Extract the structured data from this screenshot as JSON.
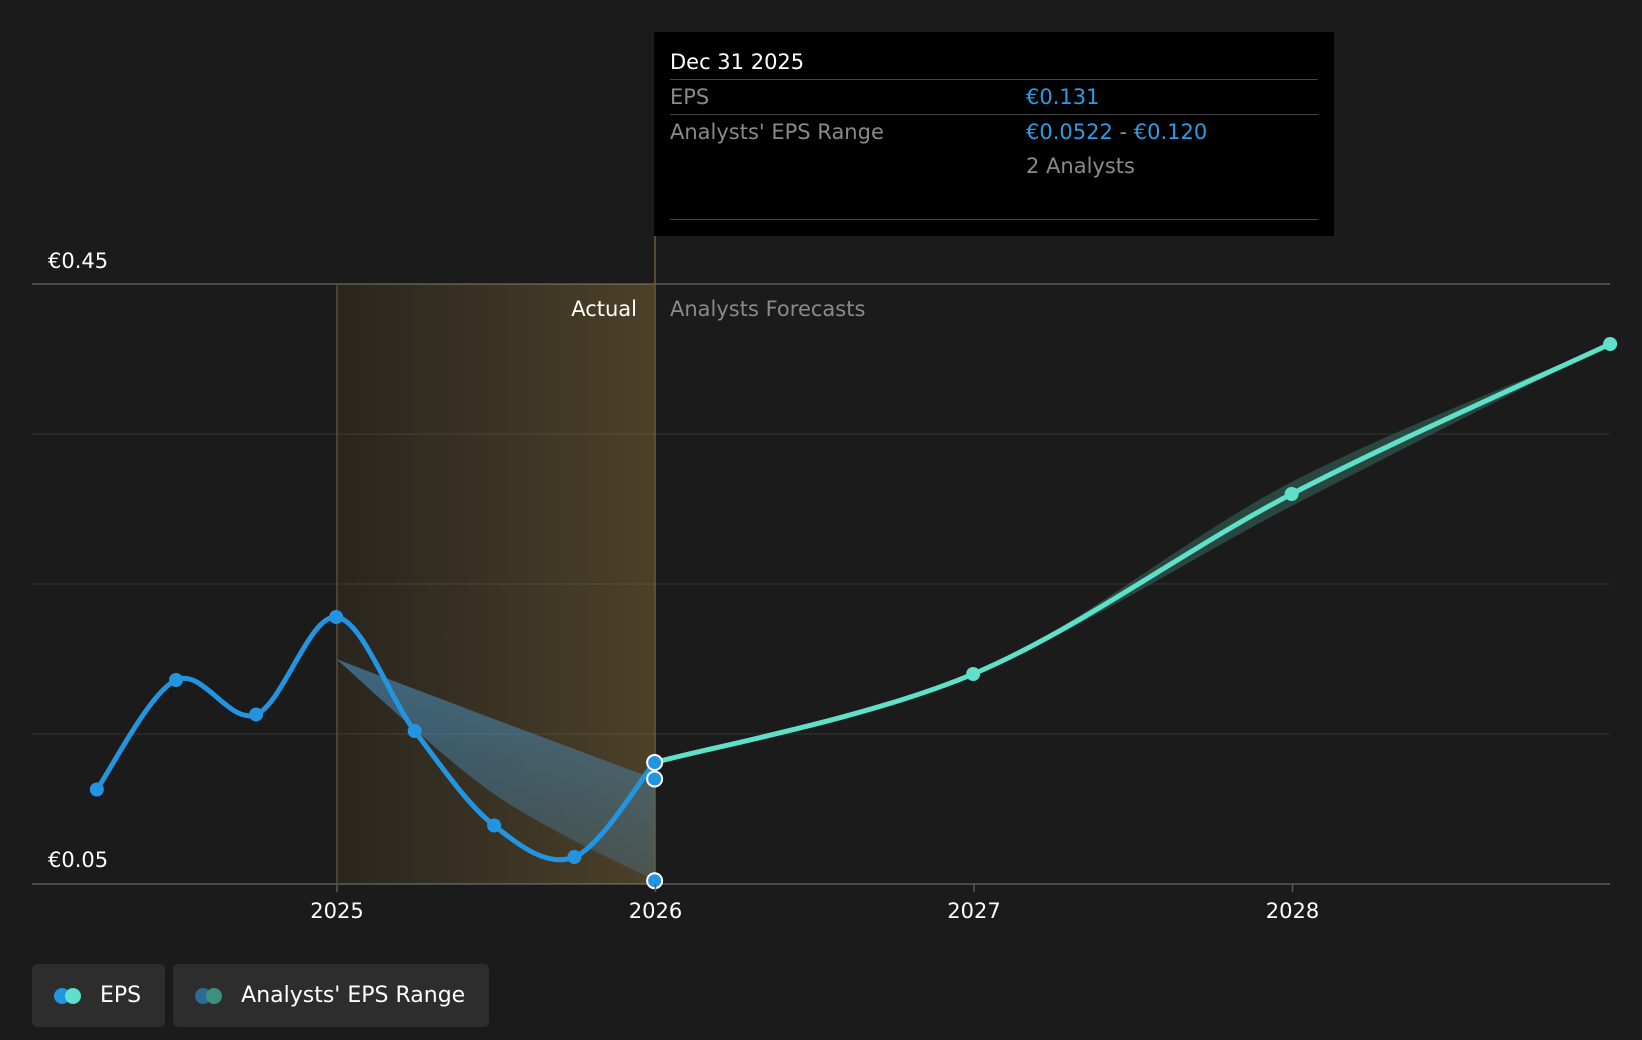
{
  "chart_data": {
    "type": "line",
    "y_axis_labels": [
      "€0.45",
      "€0.05"
    ],
    "ylim": [
      0.05,
      0.45
    ],
    "x_ticks": [
      "2025",
      "2026",
      "2027",
      "2028"
    ],
    "sections": {
      "actual": "Actual",
      "forecast": "Analysts Forecasts"
    },
    "series": [
      {
        "name": "EPS",
        "color": "#2394e0",
        "points": [
          {
            "x": "2024-03-31",
            "y": 0.113
          },
          {
            "x": "2024-06-30",
            "y": 0.186
          },
          {
            "x": "2024-09-30",
            "y": 0.163
          },
          {
            "x": "2024-12-31",
            "y": 0.228
          },
          {
            "x": "2025-03-31",
            "y": 0.152
          },
          {
            "x": "2025-06-30",
            "y": 0.089
          },
          {
            "x": "2025-09-30",
            "y": 0.068
          },
          {
            "x": "2025-12-31",
            "y": 0.131
          }
        ]
      },
      {
        "name": "EPS",
        "color": "#5fe0c8",
        "points": [
          {
            "x": "2025-12-31",
            "y": 0.131
          },
          {
            "x": "2026-12-31",
            "y": 0.19
          },
          {
            "x": "2027-12-31",
            "y": 0.31
          },
          {
            "x": "2028-12-31",
            "y": 0.41
          }
        ]
      }
    ],
    "range_bands": [
      {
        "name": "Analysts' EPS Range",
        "color": "#4a8bb5",
        "upper": [
          {
            "x": "2024-12-31",
            "y": 0.2
          },
          {
            "x": "2025-06-30",
            "y": 0.16
          },
          {
            "x": "2025-12-31",
            "y": 0.12
          }
        ],
        "lower": [
          {
            "x": "2024-12-31",
            "y": 0.2
          },
          {
            "x": "2025-06-30",
            "y": 0.11
          },
          {
            "x": "2025-12-31",
            "y": 0.0522
          }
        ]
      },
      {
        "name": "Analysts' EPS Range",
        "color": "#3f7d70",
        "upper": [
          {
            "x": "2025-12-31",
            "y": 0.131
          },
          {
            "x": "2026-12-31",
            "y": 0.19
          },
          {
            "x": "2027-12-31",
            "y": 0.318
          },
          {
            "x": "2028-12-31",
            "y": 0.41
          }
        ],
        "lower": [
          {
            "x": "2025-12-31",
            "y": 0.131
          },
          {
            "x": "2026-12-31",
            "y": 0.19
          },
          {
            "x": "2027-12-31",
            "y": 0.302
          },
          {
            "x": "2028-12-31",
            "y": 0.41
          }
        ]
      }
    ],
    "markers_at_2025_12_31": [
      0.131,
      0.12,
      0.0522
    ],
    "grid": true,
    "legend_position": "bottom-left"
  },
  "tooltip": {
    "date": "Dec 31 2025",
    "eps_label": "EPS",
    "eps_value": "€0.131",
    "range_label": "Analysts' EPS Range",
    "range_low": "€0.0522",
    "range_sep": " - ",
    "range_high": "€0.120",
    "analysts": "2 Analysts"
  },
  "legend": {
    "eps": {
      "label": "EPS",
      "colors": [
        "#2394e0",
        "#5fe0c8"
      ]
    },
    "range": {
      "label": "Analysts' EPS Range",
      "colors": [
        "#2a6c96",
        "#3f8f7d"
      ]
    }
  }
}
